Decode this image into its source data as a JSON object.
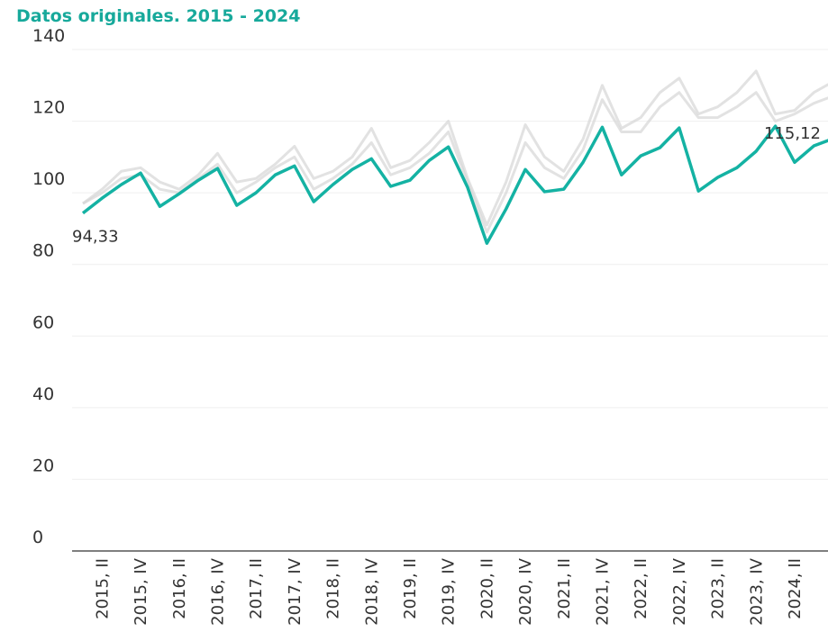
{
  "chart_data": {
    "type": "line",
    "title": "Datos originales. 2015 - 2024",
    "categories": [
      null,
      "2015, II",
      null,
      "2015, IV",
      null,
      "2016, II",
      null,
      "2016, IV",
      null,
      "2017, II",
      null,
      "2017, IV",
      null,
      "2018, II",
      null,
      "2018, IV",
      null,
      "2019, II",
      null,
      "2019, IV",
      null,
      "2020, II",
      null,
      "2020, IV",
      null,
      "2021, II",
      null,
      "2021, IV",
      null,
      "2022, II",
      null,
      "2022, IV",
      null,
      "2023, II",
      null,
      "2023, IV",
      null,
      "2024, II",
      null,
      null
    ],
    "series": [
      {
        "color": "#d6d6d6",
        "values": [
          97,
          101,
          106,
          107,
          103,
          101,
          105,
          111,
          103,
          104,
          108,
          113,
          104,
          106,
          110,
          118,
          107,
          109,
          114,
          120,
          104,
          91,
          103,
          119,
          110,
          106,
          115,
          130,
          118,
          121,
          128,
          132,
          122,
          124,
          128,
          134,
          122,
          123,
          128,
          131
        ]
      },
      {
        "color": "#d6d6d6",
        "values": [
          97,
          100,
          104,
          105,
          101,
          100,
          104,
          108,
          100,
          103,
          107,
          110,
          101,
          104,
          108,
          114,
          105,
          107,
          111,
          117,
          103,
          89,
          100,
          114,
          107,
          104,
          112,
          126,
          117,
          117,
          124,
          128,
          121,
          121,
          124,
          128,
          120,
          122,
          125,
          127
        ]
      },
      {
        "color": "#14b2a3",
        "values": [
          94.33,
          98.5,
          102.3,
          105.5,
          96.2,
          99.7,
          103.5,
          106.8,
          96.5,
          100.0,
          105.0,
          107.5,
          97.5,
          102.3,
          106.5,
          109.5,
          101.8,
          103.5,
          109.0,
          112.8,
          101.5,
          85.9,
          95.5,
          106.5,
          100.3,
          101.0,
          108.5,
          118.3,
          105.0,
          110.3,
          112.6,
          118.1,
          100.5,
          104.3,
          107.0,
          111.6,
          118.6,
          108.5,
          113.1,
          115.12
        ],
        "value_labels": [
          "94,33",
          null,
          null,
          null,
          null,
          null,
          null,
          null,
          null,
          null,
          null,
          null,
          null,
          null,
          null,
          null,
          null,
          null,
          null,
          null,
          null,
          null,
          null,
          null,
          null,
          null,
          null,
          null,
          null,
          null,
          null,
          null,
          null,
          null,
          null,
          null,
          null,
          null,
          null,
          "115,12"
        ]
      }
    ],
    "ylim": [
      0,
      140
    ],
    "yticks": [
      0,
      20,
      40,
      60,
      80,
      100,
      120,
      140
    ],
    "grid": true
  }
}
